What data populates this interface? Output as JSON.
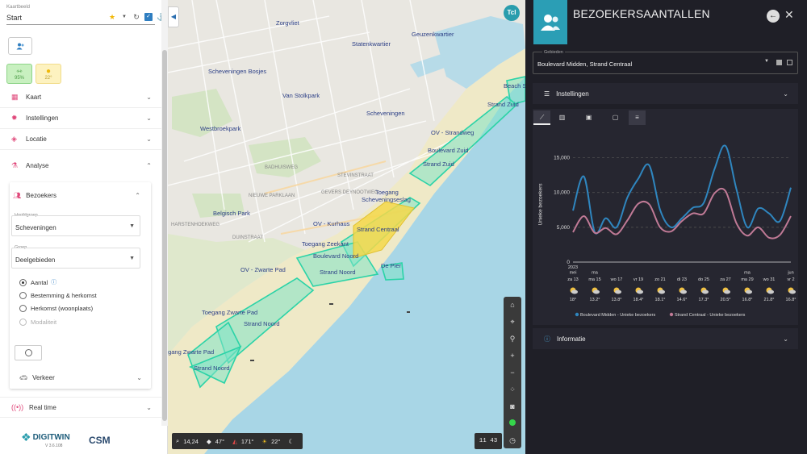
{
  "left_panel": {
    "kaartbeeld_label": "Kaartbeeld",
    "kaartbeeld_value": "Start",
    "tiles": {
      "humidity": "95%",
      "temperature": "22°"
    },
    "menu": {
      "kaart": "Kaart",
      "instellingen": "Instellingen",
      "locatie": "Locatie",
      "analyse": "Analyse"
    },
    "bezoekers": {
      "title": "Bezoekers",
      "hoofdgroep_label": "Hoofdgroep",
      "hoofdgroep_value": "Scheveningen",
      "groep_label": "Groep",
      "groep_value": "Deelgebieden",
      "options": [
        "Aantal",
        "Bestemming & herkomst",
        "Herkomst (woonplaats)",
        "Modaliteit"
      ],
      "selected_index": 0,
      "verkeer": "Verkeer"
    },
    "realtime": "Real time",
    "logo_text": "DIGITWIN",
    "version": "V 3.6.108",
    "logo2": "CSM"
  },
  "map": {
    "user_badge": "Tcl",
    "labels": {
      "zorgvliet": "Zorgvliet",
      "statenkwartier": "Statenkwartier",
      "geuzenkwartier": "Geuzenkwartier",
      "scheveningen_bosjes": "Scheveningen Bosjes",
      "van_stolkpark": "Van Stolkpark",
      "scheveningen": "Scheveningen",
      "westbroekpark": "Westbroekpark",
      "belgisch_park": "Belgisch Park",
      "beach_s": "Beach S",
      "strand_zuid_1": "Strand Zuid",
      "ov_strandweg": "OV - Strandweg",
      "boulevard_zuid": "Boulevard Zuid",
      "strand_zuid_2": "Strand Zuid",
      "toegang_scheveningseslag_1": "Toegang",
      "toegang_scheveningseslag_2": "Scheveningseslag",
      "ov_kurhaus": "OV - Kurhaus",
      "strand_centraal": "Strand Centraal",
      "toegang_zeekant": "Toegang Zeekant",
      "boulevard_noord": "Boulevard Noord",
      "de_pier": "De Pier",
      "ov_zwarte_pad": "OV - Zwarte Pad",
      "strand_noord_1": "Strand Noord",
      "toegang_zwarte_pad_1": "Toegang Zwarte Pad",
      "strand_noord_2": "Strand Noord",
      "toegang_zwarte_pad_2": "Toegang Zwarte Pad",
      "strand_noord_3": "Strand Noord",
      "gevers_deynootweg": "GEVERS DEYNOOTWEG",
      "duinstraat": "DUINSTRAAT",
      "nieuwe_parklaan": "NIEUWE PARKLAAN",
      "stevinstraat": "STEVINSTRAAT",
      "badhuisweg": "BADHUISWEG",
      "harstenhoekweg": "HARSTENHOEKWEG"
    },
    "status": {
      "zoom": "14,24",
      "pitch": "47°",
      "bearing": "171°",
      "temp": "22°",
      "time": "11 43"
    }
  },
  "right_panel": {
    "title": "BEZOEKERSAANTALLEN",
    "gebieden_label": "Gebieden",
    "gebieden_value": "Boulevard Midden, Strand Centraal",
    "instellingen": "Instellingen",
    "informatie": "Informatie"
  },
  "chart_data": {
    "type": "line",
    "ylabel": "Unieke bezoekers",
    "ylim": [
      0,
      17500
    ],
    "yticks": [
      0,
      5000,
      10000,
      15000
    ],
    "ytick_labels": [
      "0",
      "5,000",
      "10,000",
      "15,000"
    ],
    "grid": true,
    "legend_position": "bottom",
    "x_label_days": [
      "za 13",
      "ma 15",
      "wo 17",
      "vr 19",
      "zo 21",
      "di 23",
      "do 25",
      "za 27",
      "ma 29",
      "wo 31",
      "vr 2"
    ],
    "x_label_tops": [
      "2023 mei",
      "ma",
      "",
      "",
      "",
      "",
      "",
      "",
      "ma",
      "",
      "jun"
    ],
    "weather_temps": [
      "18°",
      "13.2°",
      "13.8°",
      "18.4°",
      "18.1°",
      "14.6°",
      "17.3°",
      "20.5°",
      "16.8°",
      "21.8°",
      "16.8°"
    ],
    "x": [
      "2023-05-13",
      "2023-05-14",
      "2023-05-15",
      "2023-05-16",
      "2023-05-17",
      "2023-05-18",
      "2023-05-19",
      "2023-05-20",
      "2023-05-21",
      "2023-05-22",
      "2023-05-23",
      "2023-05-24",
      "2023-05-25",
      "2023-05-26",
      "2023-05-27",
      "2023-05-28",
      "2023-05-29",
      "2023-05-30",
      "2023-05-31",
      "2023-06-01",
      "2023-06-02"
    ],
    "series": [
      {
        "name": "Boulevard Midden - Unieke bezoekers",
        "color": "#2f86bf",
        "values": [
          7400,
          12300,
          4300,
          6300,
          5000,
          9300,
          12000,
          13900,
          7500,
          5000,
          6300,
          7800,
          8500,
          13400,
          16700,
          10500,
          5000,
          7700,
          7000,
          5900,
          10700
        ]
      },
      {
        "name": "Strand Centraal - Unieke bezoekers",
        "color": "#c07a96",
        "values": [
          4300,
          6600,
          4200,
          4900,
          4000,
          6000,
          8400,
          8300,
          5000,
          4400,
          5900,
          7000,
          7000,
          9900,
          10200,
          5600,
          3800,
          5000,
          3500,
          3900,
          6600
        ]
      }
    ]
  }
}
